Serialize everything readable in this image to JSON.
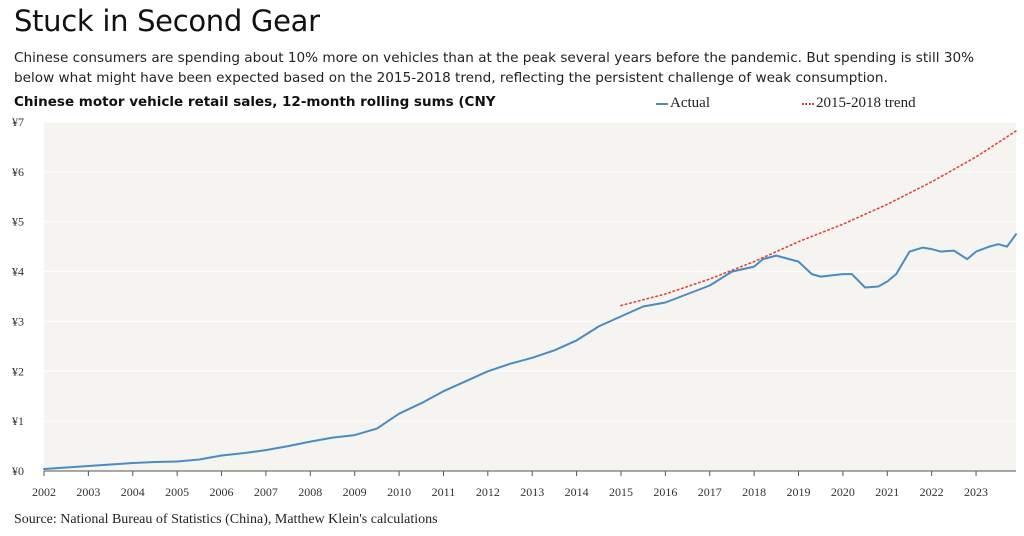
{
  "header": {
    "title": "Stuck in Second Gear",
    "subtitle": "Chinese consumers are spending about 10% more on vehicles than at the peak several years before the pandemic. But spending is still 30% below what might have been expected based on the 2015-2018 trend, reflecting the persistent challenge of weak consumption.",
    "chart_heading": "Chinese motor vehicle retail sales, 12-month rolling sums (CNY",
    "source": "Source: National Bureau of Statistics (China), Matthew Klein's calculations"
  },
  "colors": {
    "actual": "#4a8bc4",
    "trend": "#e0453a",
    "plot_background": "#f6f4f0",
    "grid": "#ffffff"
  },
  "chart_data": {
    "type": "line",
    "title": "",
    "xlabel": "",
    "ylabel": "",
    "legend_position": "top-right",
    "grid": true,
    "xlim": [
      2002,
      2023.9
    ],
    "ylim": [
      0,
      7
    ],
    "y_ticks": [
      0,
      1,
      2,
      3,
      4,
      5,
      6,
      7
    ],
    "y_tick_labels": [
      "¥0",
      "¥1",
      "¥2",
      "¥3",
      "¥4",
      "¥5",
      "¥6",
      "¥7"
    ],
    "x_ticks": [
      2002,
      2003,
      2004,
      2005,
      2006,
      2007,
      2008,
      2009,
      2010,
      2011,
      2012,
      2013,
      2014,
      2015,
      2016,
      2017,
      2018,
      2019,
      2020,
      2021,
      2022,
      2023
    ],
    "x_tick_labels": [
      "2002",
      "2003",
      "2004",
      "2005",
      "2006",
      "2007",
      "2008",
      "2009",
      "2010",
      "2011",
      "2012",
      "2013",
      "2014",
      "2015",
      "2016",
      "2017",
      "2018",
      "2019",
      "2020",
      "2021",
      "2022",
      "2023"
    ],
    "series": [
      {
        "name": "Actual",
        "style": "solid",
        "x": [
          2002,
          2002.5,
          2003,
          2003.5,
          2004,
          2004.5,
          2005,
          2005.5,
          2006,
          2006.5,
          2007,
          2007.5,
          2008,
          2008.5,
          2009,
          2009.5,
          2010,
          2010.5,
          2011,
          2011.5,
          2012,
          2012.5,
          2013,
          2013.5,
          2014,
          2014.5,
          2015,
          2015.5,
          2016,
          2016.5,
          2017,
          2017.5,
          2018,
          2018.2,
          2018.5,
          2019,
          2019.3,
          2019.5,
          2020,
          2020.2,
          2020.5,
          2020.8,
          2021,
          2021.2,
          2021.5,
          2021.8,
          2022,
          2022.2,
          2022.5,
          2022.8,
          2023,
          2023.3,
          2023.5,
          2023.7,
          2023.9
        ],
        "values": [
          0.04,
          0.07,
          0.1,
          0.13,
          0.16,
          0.18,
          0.19,
          0.23,
          0.31,
          0.36,
          0.42,
          0.5,
          0.59,
          0.67,
          0.72,
          0.85,
          1.15,
          1.36,
          1.6,
          1.8,
          2.0,
          2.15,
          2.27,
          2.42,
          2.62,
          2.9,
          3.1,
          3.3,
          3.38,
          3.55,
          3.72,
          4.0,
          4.1,
          4.25,
          4.32,
          4.2,
          3.95,
          3.9,
          3.95,
          3.95,
          3.68,
          3.7,
          3.8,
          3.95,
          4.4,
          4.48,
          4.45,
          4.4,
          4.42,
          4.25,
          4.4,
          4.5,
          4.55,
          4.5,
          4.75
        ]
      },
      {
        "name": "2015-2018 trend",
        "style": "dotted",
        "x": [
          2015,
          2016,
          2017,
          2018,
          2019,
          2020,
          2021,
          2022,
          2023,
          2023.9
        ],
        "values": [
          3.32,
          3.55,
          3.85,
          4.2,
          4.6,
          4.95,
          5.35,
          5.8,
          6.3,
          6.82
        ]
      }
    ]
  }
}
